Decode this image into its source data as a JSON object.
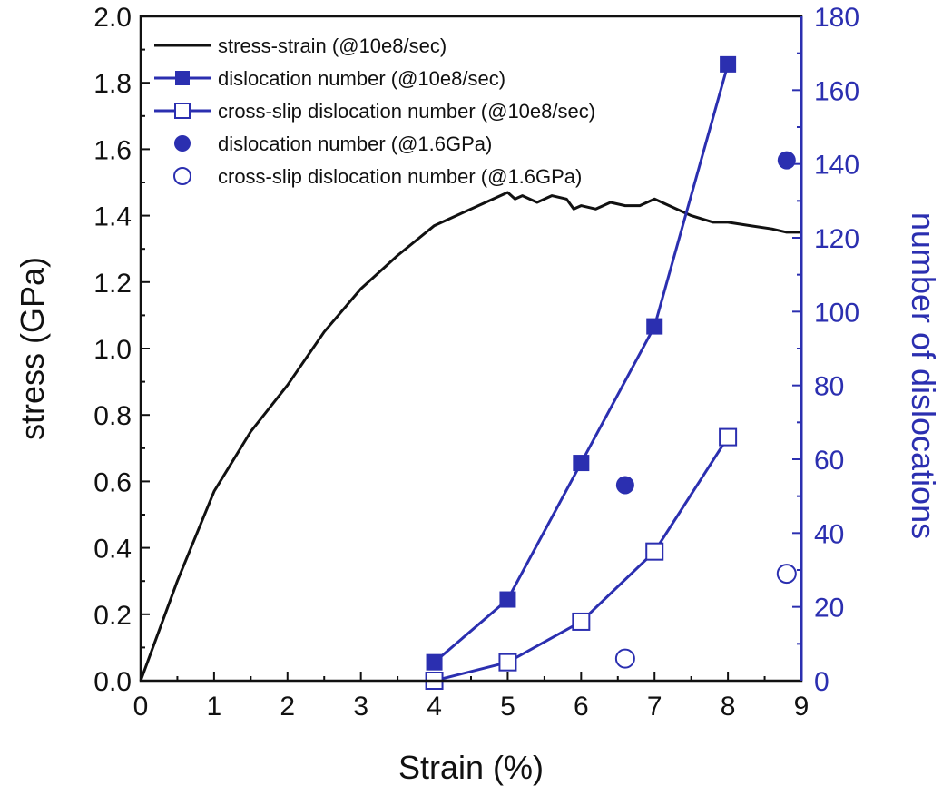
{
  "colors": {
    "black": "#111111",
    "blue": "#2b2fb0"
  },
  "chart_data": {
    "type": "line",
    "xlabel": "Strain (%)",
    "ylabel_left": "stress (GPa)",
    "ylabel_right": "number of dislocations",
    "xlim": [
      0,
      9
    ],
    "ylim_left": [
      0,
      2.0
    ],
    "ylim_right": [
      0,
      180
    ],
    "x_ticks": [
      "0",
      "1",
      "2",
      "3",
      "4",
      "5",
      "6",
      "7",
      "8",
      "9"
    ],
    "y_left_ticks": [
      "0.0",
      "0.2",
      "0.4",
      "0.6",
      "0.8",
      "1.0",
      "1.2",
      "1.4",
      "1.6",
      "1.8",
      "2.0"
    ],
    "y_right_ticks": [
      "0",
      "20",
      "40",
      "60",
      "80",
      "100",
      "120",
      "140",
      "160",
      "180"
    ],
    "grid": false,
    "legend_position": "top-left",
    "series": [
      {
        "name": "stress-strain (@10e8/sec)",
        "axis": "left",
        "marker": "none",
        "x": [
          0,
          0.5,
          1.0,
          1.5,
          2.0,
          2.5,
          3.0,
          3.5,
          4.0,
          4.3,
          4.6,
          4.9,
          5.0,
          5.1,
          5.2,
          5.4,
          5.6,
          5.8,
          5.9,
          6.0,
          6.2,
          6.4,
          6.6,
          6.8,
          7.0,
          7.2,
          7.5,
          7.8,
          8.0,
          8.3,
          8.6,
          8.8,
          9.0
        ],
        "y": [
          0,
          0.3,
          0.57,
          0.75,
          0.89,
          1.05,
          1.18,
          1.28,
          1.37,
          1.4,
          1.43,
          1.46,
          1.47,
          1.45,
          1.46,
          1.44,
          1.46,
          1.45,
          1.42,
          1.43,
          1.42,
          1.44,
          1.43,
          1.43,
          1.45,
          1.43,
          1.4,
          1.38,
          1.38,
          1.37,
          1.36,
          1.35,
          1.35
        ]
      },
      {
        "name": "dislocation number (@10e8/sec)",
        "axis": "right",
        "marker": "filled-square",
        "x": [
          4,
          5,
          6,
          7,
          8
        ],
        "y": [
          5,
          22,
          59,
          96,
          167
        ]
      },
      {
        "name": "cross-slip dislocation number (@10e8/sec)",
        "axis": "right",
        "marker": "open-square",
        "x": [
          4,
          5,
          6,
          7,
          8
        ],
        "y": [
          0,
          5,
          16,
          35,
          66
        ]
      },
      {
        "name": "dislocation number (@1.6GPa)",
        "axis": "right",
        "marker": "filled-circle",
        "x": [
          6.6,
          8.8
        ],
        "y": [
          53,
          141
        ]
      },
      {
        "name": "cross-slip dislocation number (@1.6GPa)",
        "axis": "right",
        "marker": "open-circle",
        "x": [
          6.6,
          8.8
        ],
        "y": [
          6,
          29
        ]
      }
    ]
  }
}
